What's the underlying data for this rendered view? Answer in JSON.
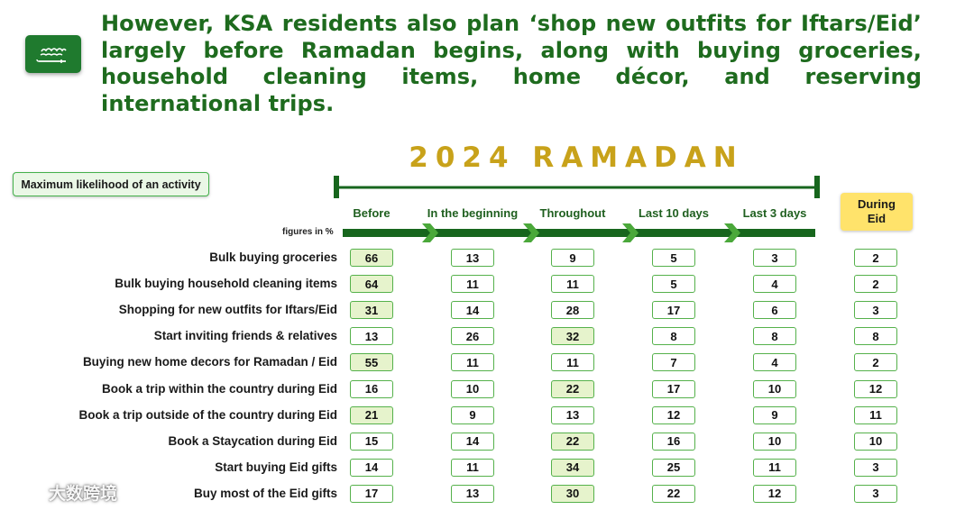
{
  "headline": "However, KSA residents also plan ‘shop new outfits for Iftars/Eid’ largely before Ramadan begins, along with buying groceries, household cleaning items,  home décor, and reserving international trips.",
  "legend_label": "Maximum likelihood of an activity",
  "figures_note": "figures in %",
  "watermark_text": "大数跨境",
  "colors": {
    "headline": "#1e6b1e",
    "title": "#c8a21a",
    "timeline": "#17661d",
    "highlight": "#e6f3cc",
    "eid": "#ffe36b",
    "cell_border": "#55b14b"
  },
  "chart_data": {
    "type": "table",
    "title": "2024 RAMADAN",
    "columns": [
      "Before",
      "In the beginning",
      "Throughout",
      "Last 10 days",
      "Last 3 days"
    ],
    "eid_column": "During Eid",
    "rows": [
      {
        "label": "Bulk buying groceries",
        "values": [
          66,
          13,
          9,
          5,
          3
        ],
        "eid": 2,
        "max_index": 0
      },
      {
        "label": "Bulk buying household cleaning items",
        "values": [
          64,
          11,
          11,
          5,
          4
        ],
        "eid": 2,
        "max_index": 0
      },
      {
        "label": "Shopping for new outfits for Iftars/Eid",
        "values": [
          31,
          14,
          28,
          17,
          6
        ],
        "eid": 3,
        "max_index": 0
      },
      {
        "label": "Start inviting friends & relatives",
        "values": [
          13,
          26,
          32,
          8,
          8
        ],
        "eid": 8,
        "max_index": 2
      },
      {
        "label": "Buying new home decors for Ramadan / Eid",
        "values": [
          55,
          11,
          11,
          7,
          4
        ],
        "eid": 2,
        "max_index": 0
      },
      {
        "label": "Book a trip within the country during Eid",
        "values": [
          16,
          10,
          22,
          17,
          10
        ],
        "eid": 12,
        "max_index": 2
      },
      {
        "label": "Book a trip outside of the country during Eid",
        "values": [
          21,
          9,
          13,
          12,
          9
        ],
        "eid": 11,
        "max_index": 0
      },
      {
        "label": "Book a Staycation during Eid",
        "values": [
          15,
          14,
          22,
          16,
          10
        ],
        "eid": 10,
        "max_index": 2
      },
      {
        "label": "Start buying Eid gifts",
        "values": [
          14,
          11,
          34,
          25,
          11
        ],
        "eid": 3,
        "max_index": 2
      },
      {
        "label": "Buy most of the Eid gifts",
        "values": [
          17,
          13,
          30,
          22,
          12
        ],
        "eid": 3,
        "max_index": 2
      }
    ]
  }
}
